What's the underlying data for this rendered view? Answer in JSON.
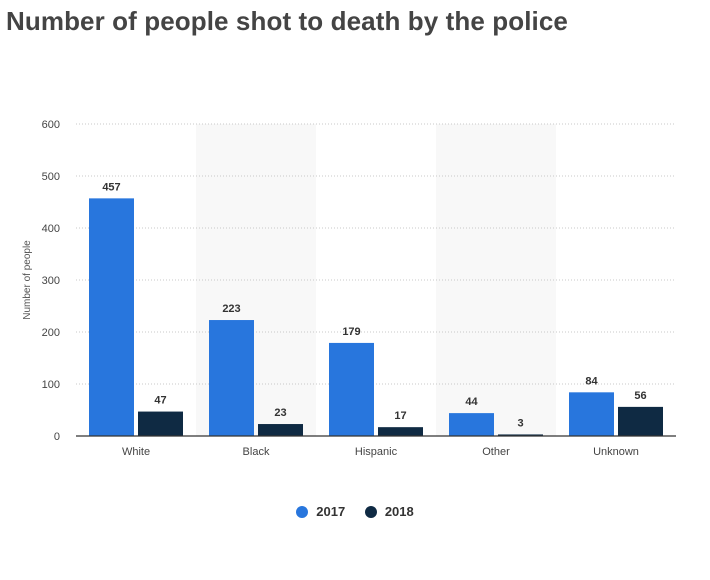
{
  "colors": {
    "2017": "#2876dd",
    "2018": "#0f2a43"
  },
  "chart_data": {
    "type": "bar",
    "title": "Number of people shot to death by the police",
    "xlabel": "",
    "ylabel": "Number of people",
    "ylim": [
      0,
      600
    ],
    "yticks": [
      0,
      100,
      200,
      300,
      400,
      500,
      600
    ],
    "categories": [
      "White",
      "Black",
      "Hispanic",
      "Other",
      "Unknown"
    ],
    "series": [
      {
        "name": "2017",
        "values": [
          457,
          223,
          179,
          44,
          84
        ]
      },
      {
        "name": "2018",
        "values": [
          47,
          23,
          17,
          3,
          56
        ]
      }
    ],
    "grid": true,
    "legend_position": "bottom-center"
  }
}
